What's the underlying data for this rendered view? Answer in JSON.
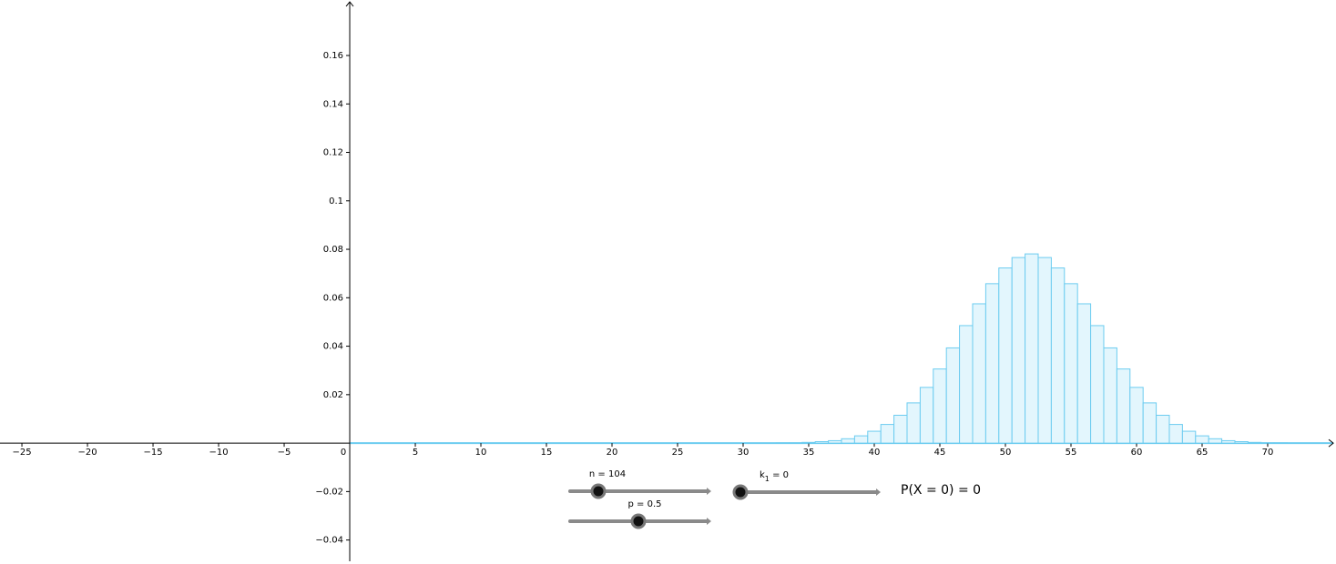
{
  "chart_data": {
    "type": "histogram",
    "bins": [
      31.5,
      32.5,
      33.5,
      34.5,
      35.5,
      36.5,
      37.5,
      38.5,
      39.5,
      40.5,
      41.5,
      42.5,
      43.5,
      44.5,
      45.5,
      46.5,
      47.5,
      48.5,
      49.5,
      50.5,
      51.5,
      52.5,
      53.5,
      54.5,
      55.5,
      56.5,
      57.5,
      58.5,
      59.5,
      60.5,
      61.5,
      62.5,
      63.5,
      64.5,
      65.5,
      66.5,
      67.5,
      68.5,
      69.5,
      70.5,
      71.5,
      72.5
    ],
    "values": [
      0,
      0.0001,
      0.0001,
      0.0003,
      0.0006,
      0.001,
      0.0018,
      0.003,
      0.0049,
      0.0077,
      0.0115,
      0.0166,
      0.023,
      0.0306,
      0.0393,
      0.0485,
      0.0575,
      0.0658,
      0.0723,
      0.0766,
      0.0781,
      0.0766,
      0.0723,
      0.0658,
      0.0575,
      0.0485,
      0.0393,
      0.0306,
      0.023,
      0.0166,
      0.0115,
      0.0077,
      0.0049,
      0.003,
      0.0018,
      0.001,
      0.0006,
      0.0003,
      0.0001,
      0.0001,
      0
    ],
    "color": "#e3f6fd",
    "edge_color": "#6cccf0",
    "xlim": [
      -26.67,
      75.21
    ],
    "ylim": [
      -0.0499,
      0.1829
    ],
    "xticks": [
      {
        "value": -25,
        "label": "−25"
      },
      {
        "value": -20,
        "label": "−20"
      },
      {
        "value": -15,
        "label": "−15"
      },
      {
        "value": -10,
        "label": "−10"
      },
      {
        "value": -5,
        "label": "−5"
      },
      0,
      5,
      10,
      15,
      20,
      25,
      30,
      35,
      40,
      45,
      50,
      55,
      60,
      65,
      70
    ],
    "yticks": [
      {
        "value": -0.04,
        "label": "−0.04"
      },
      {
        "value": -0.02,
        "label": "−0.02"
      },
      0.02,
      0.04,
      0.06,
      0.08,
      0.1,
      0.12,
      0.14,
      0.16
    ]
  },
  "controls": {
    "sliders": [
      {
        "label": "n = 104"
      },
      {
        "label": "p = 0.5"
      },
      {
        "label_main": "k",
        "label_sub": "1",
        "label_rest": " = 0"
      }
    ],
    "result": "P(X = 0) = 0"
  }
}
